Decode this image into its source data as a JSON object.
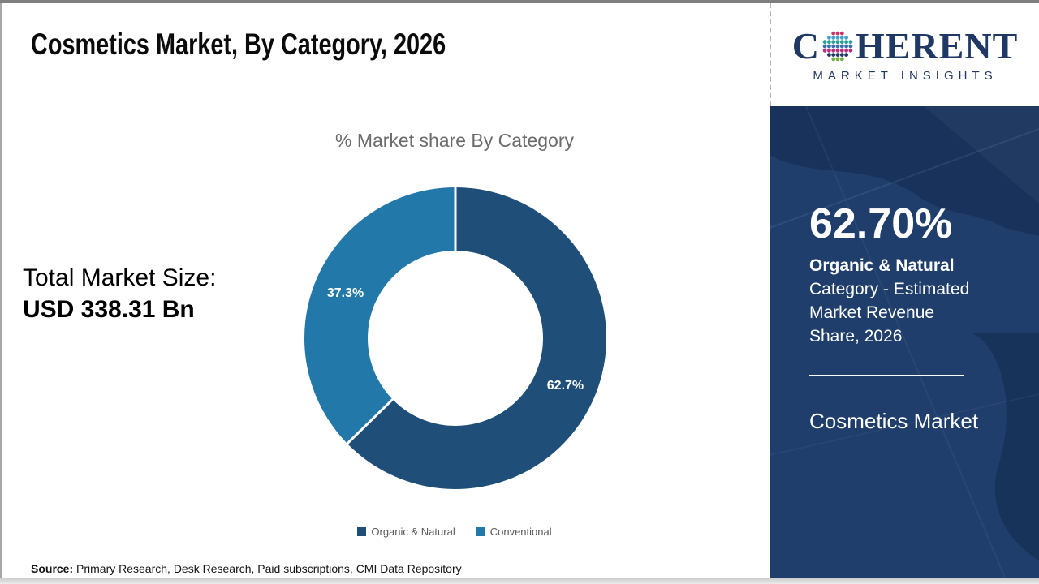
{
  "page": {
    "title": "Cosmetics Market, By Category, 2026",
    "source_label": "Source:",
    "source_text": " Primary Research, Desk Research, Paid subscriptions, CMI Data Repository"
  },
  "logo": {
    "brand_prefix": "C",
    "brand_suffix": "HERENT",
    "tagline": "MARKET INSIGHTS",
    "brand_color": "#1f3864",
    "globe_colors": [
      "#3c6db0",
      "#44a1c8",
      "#74b143",
      "#b92d7e",
      "#2b9f94",
      "#c4376a",
      "#1f3864"
    ]
  },
  "stats": {
    "total_label": "Total Market Size:",
    "total_value": "USD 338.31 Bn"
  },
  "sidebar": {
    "bg_color": "#1f3e6c",
    "highlight_value": "62.70%",
    "highlight_line1": "Organic & Natural",
    "highlight_line2": "Category - Estimated Market Revenue Share, 2026",
    "footer_title": "Cosmetics Market"
  },
  "chart_data": {
    "type": "pie",
    "donut": true,
    "title": "% Market share By Category",
    "categories": [
      "Organic & Natural",
      "Conventional"
    ],
    "values": [
      62.7,
      37.3
    ],
    "labels": [
      "62.7%",
      "37.3%"
    ],
    "colors": [
      "#1f4e79",
      "#2278a8"
    ],
    "start_angle_deg": 0,
    "direction": "clockwise",
    "label_color": "#ffffff",
    "legend_position": "bottom",
    "legend_text_color": "#595959"
  }
}
